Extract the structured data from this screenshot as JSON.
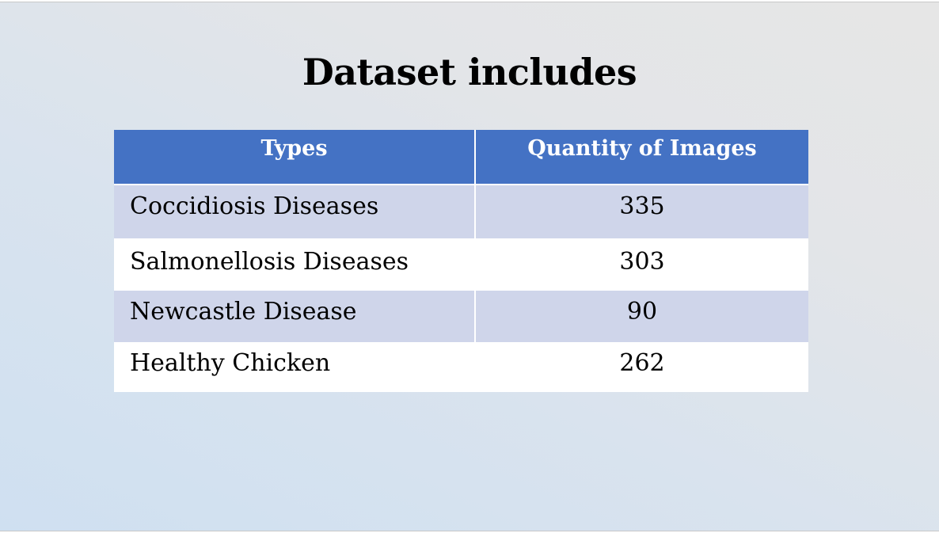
{
  "slide": {
    "title": "Dataset includes"
  },
  "table": {
    "headers": [
      "Types",
      "Quantity of Images"
    ],
    "rows": [
      {
        "type": "Coccidiosis Diseases",
        "quantity": "335"
      },
      {
        "type": "Salmonellosis Diseases",
        "quantity": "303"
      },
      {
        "type": "Newcastle Disease",
        "quantity": "90"
      },
      {
        "type": "Healthy Chicken",
        "quantity": "262"
      }
    ]
  },
  "colors": {
    "header_fill": "#4472c4",
    "band_fill": "#cfd5ea",
    "plain_fill": "#ffffff",
    "background": "#e6e6e6"
  }
}
